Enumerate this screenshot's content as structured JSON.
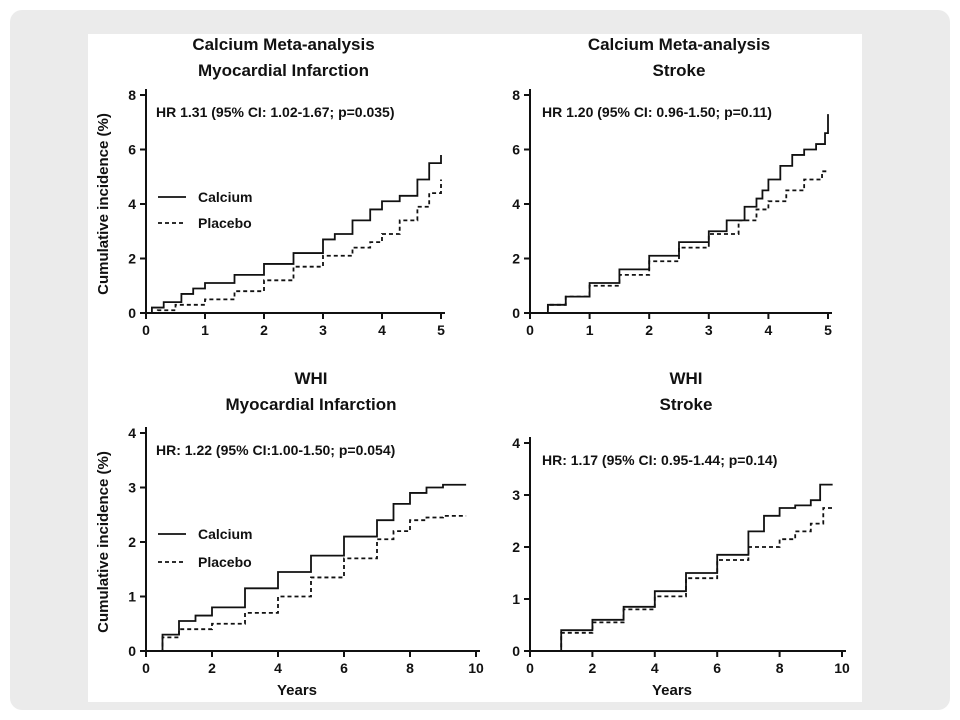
{
  "chart_data": [
    {
      "type": "line",
      "title": [
        "Calcium Meta-analysis",
        "Myocardial Infarction"
      ],
      "annotation": "HR 1.31 (95% CI: 1.02-1.67; p=0.035)",
      "ylabel": "Cumulative incidence (%)",
      "xlabel": "",
      "xlim": [
        0,
        5
      ],
      "ylim": [
        0,
        8
      ],
      "xticks": [
        0,
        1,
        2,
        3,
        4,
        5
      ],
      "yticks": [
        0,
        2,
        4,
        6,
        8
      ],
      "legend": "left",
      "series": [
        {
          "name": "Calcium",
          "style": "solid",
          "x": [
            0,
            0.1,
            0.3,
            0.6,
            0.8,
            1.0,
            1.5,
            2.0,
            2.5,
            3.0,
            3.2,
            3.5,
            3.8,
            4.0,
            4.3,
            4.6,
            4.8,
            5.0
          ],
          "y": [
            0,
            0.2,
            0.4,
            0.7,
            0.9,
            1.1,
            1.4,
            1.8,
            2.2,
            2.7,
            2.9,
            3.4,
            3.8,
            4.1,
            4.3,
            4.9,
            5.5,
            5.8
          ]
        },
        {
          "name": "Placebo",
          "style": "dashed",
          "x": [
            0,
            0.2,
            0.5,
            1.0,
            1.5,
            2.0,
            2.5,
            3.0,
            3.5,
            3.8,
            4.0,
            4.3,
            4.6,
            4.8,
            5.0
          ],
          "y": [
            0,
            0.1,
            0.3,
            0.5,
            0.8,
            1.2,
            1.7,
            2.1,
            2.4,
            2.6,
            2.9,
            3.4,
            3.9,
            4.4,
            4.9
          ]
        }
      ]
    },
    {
      "type": "line",
      "title": [
        "Calcium Meta-analysis",
        "Stroke"
      ],
      "annotation": "HR 1.20 (95% CI: 0.96-1.50; p=0.11)",
      "ylabel": "",
      "xlabel": "",
      "xlim": [
        0,
        5
      ],
      "ylim": [
        0,
        8
      ],
      "xticks": [
        0,
        1,
        2,
        3,
        4,
        5
      ],
      "yticks": [
        0,
        2,
        4,
        6,
        8
      ],
      "series": [
        {
          "name": "Calcium",
          "style": "solid",
          "x": [
            0,
            0.3,
            0.6,
            1.0,
            1.5,
            2.0,
            2.5,
            3.0,
            3.3,
            3.6,
            3.8,
            3.9,
            4.0,
            4.2,
            4.4,
            4.6,
            4.8,
            4.95,
            5.0
          ],
          "y": [
            0,
            0.3,
            0.6,
            1.1,
            1.6,
            2.1,
            2.6,
            3.0,
            3.4,
            3.9,
            4.2,
            4.5,
            4.9,
            5.4,
            5.8,
            6.0,
            6.2,
            6.6,
            7.3
          ]
        },
        {
          "name": "Placebo",
          "style": "dashed",
          "x": [
            0,
            0.3,
            0.6,
            1.0,
            1.5,
            2.0,
            2.5,
            3.0,
            3.5,
            3.8,
            4.0,
            4.3,
            4.6,
            4.9,
            5.0
          ],
          "y": [
            0,
            0.3,
            0.6,
            1.0,
            1.4,
            1.9,
            2.4,
            2.9,
            3.4,
            3.8,
            4.1,
            4.5,
            4.9,
            5.2,
            5.2
          ]
        }
      ]
    },
    {
      "type": "line",
      "title": [
        "WHI",
        "Myocardial Infarction"
      ],
      "annotation": "HR: 1.22 (95% CI:1.00-1.50; p=0.054)",
      "ylabel": "Cumulative incidence (%)",
      "xlabel": "Years",
      "xlim": [
        0,
        10
      ],
      "ylim": [
        0,
        4
      ],
      "xticks": [
        0,
        2,
        4,
        6,
        8,
        10
      ],
      "yticks": [
        0,
        1,
        2,
        3,
        4
      ],
      "legend": "left",
      "series": [
        {
          "name": "Calcium",
          "style": "solid",
          "x": [
            0,
            0.5,
            1.0,
            1.5,
            2.0,
            3.0,
            4.0,
            5.0,
            6.0,
            7.0,
            7.5,
            8.0,
            8.5,
            9.0,
            9.7
          ],
          "y": [
            0,
            0.3,
            0.55,
            0.65,
            0.8,
            1.15,
            1.45,
            1.75,
            2.1,
            2.4,
            2.7,
            2.9,
            3.0,
            3.05,
            3.05
          ]
        },
        {
          "name": "Placebo",
          "style": "dashed",
          "x": [
            0,
            0.5,
            1.0,
            2.0,
            3.0,
            4.0,
            5.0,
            6.0,
            7.0,
            7.5,
            8.0,
            8.5,
            9.0,
            9.7
          ],
          "y": [
            0,
            0.25,
            0.4,
            0.5,
            0.7,
            1.0,
            1.35,
            1.7,
            2.05,
            2.2,
            2.4,
            2.45,
            2.48,
            2.48
          ]
        }
      ]
    },
    {
      "type": "line",
      "title": [
        "WHI",
        "Stroke"
      ],
      "annotation": "HR: 1.17 (95% CI: 0.95-1.44; p=0.14)",
      "ylabel": "",
      "xlabel": "Years",
      "xlim": [
        0,
        10
      ],
      "ylim": [
        0,
        4
      ],
      "xticks": [
        0,
        2,
        4,
        6,
        8,
        10
      ],
      "yticks": [
        0,
        1,
        2,
        3,
        4
      ],
      "series": [
        {
          "name": "Calcium",
          "style": "solid",
          "x": [
            0,
            1.0,
            2.0,
            3.0,
            4.0,
            5.0,
            6.0,
            7.0,
            7.5,
            8.0,
            8.5,
            9.0,
            9.3,
            9.7
          ],
          "y": [
            0,
            0.4,
            0.6,
            0.85,
            1.15,
            1.5,
            1.85,
            2.3,
            2.6,
            2.75,
            2.8,
            2.9,
            3.2,
            3.2
          ]
        },
        {
          "name": "Placebo",
          "style": "dashed",
          "x": [
            0,
            1.0,
            2.0,
            3.0,
            4.0,
            5.0,
            6.0,
            7.0,
            8.0,
            8.5,
            9.0,
            9.3,
            9.4,
            9.7
          ],
          "y": [
            0,
            0.35,
            0.55,
            0.8,
            1.05,
            1.4,
            1.75,
            2.0,
            2.15,
            2.3,
            2.45,
            2.45,
            2.75,
            2.75
          ]
        }
      ]
    }
  ]
}
